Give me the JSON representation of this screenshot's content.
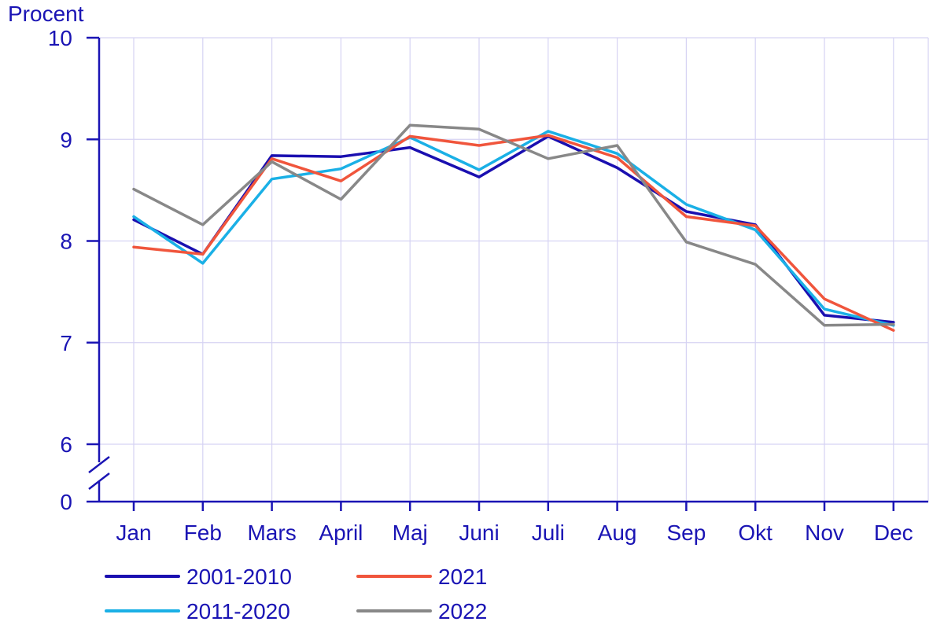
{
  "chart_data": {
    "type": "line",
    "unit_label": "Procent",
    "categories": [
      "Jan",
      "Feb",
      "Mars",
      "April",
      "Maj",
      "Juni",
      "Juli",
      "Aug",
      "Sep",
      "Okt",
      "Nov",
      "Dec"
    ],
    "y_ticks": [
      "0",
      "6",
      "7",
      "8",
      "9",
      "10"
    ],
    "ylim": [
      6,
      10
    ],
    "axis_break": true,
    "grid": true,
    "legend_position": "bottom",
    "series": [
      {
        "name": "2001-2010",
        "color": "#1a0fb0",
        "values": [
          8.21,
          7.87,
          8.84,
          8.83,
          8.92,
          8.63,
          9.03,
          8.72,
          8.29,
          8.16,
          7.27,
          7.2
        ]
      },
      {
        "name": "2021",
        "color": "#f0553c",
        "values": [
          7.94,
          7.87,
          8.81,
          8.59,
          9.03,
          8.94,
          9.04,
          8.82,
          8.24,
          8.15,
          7.43,
          7.12
        ]
      },
      {
        "name": "2011-2020",
        "color": "#1ab0e6",
        "values": [
          8.24,
          7.78,
          8.61,
          8.71,
          9.02,
          8.7,
          9.08,
          8.86,
          8.36,
          8.11,
          7.33,
          7.17
        ]
      },
      {
        "name": "2022",
        "color": "#888888",
        "values": [
          8.51,
          8.16,
          8.78,
          8.41,
          9.14,
          9.1,
          8.81,
          8.94,
          7.99,
          7.77,
          7.17,
          7.18
        ]
      }
    ]
  }
}
